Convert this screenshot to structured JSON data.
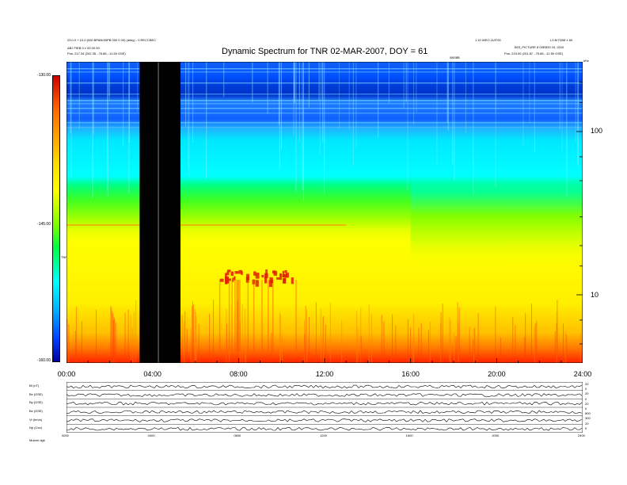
{
  "header": {
    "title": "Dynamic Spectrum for TNR 02-MAR-2007, DOY = 61",
    "left_line1": "23.0.0 + 10.0 (000 BPANOBPB 000 0 00) (deky) - 0 RECCBEC",
    "left_line2": "ABJ FIEB 0 ± 00 00 00",
    "left_line3": "Pos: 217.34 (202.35, -76.85, -11.59 GSE)",
    "right_line1": "1.10 WEO 2UIT00",
    "right_line2": "L3 B/700M ± 60",
    "right_line3": "B03_PICTURE 8 00EB33 10, 2010",
    "right_line4": "Pos: 215.00 (201.87, -75.85, -12.50 GSE)",
    "center_small": "08/08B",
    "right_unit": "kHz"
  },
  "colorbar": {
    "label": "TNR",
    "ticks": [
      "-130.00",
      "-145.00",
      "-160.00"
    ]
  },
  "chart_data": {
    "type": "heatmap",
    "title": "Dynamic Spectrum for TNR 02-MAR-2007, DOY = 61",
    "x": {
      "label": "",
      "range": [
        0,
        24
      ],
      "tick_labels": [
        "00:00",
        "04:00",
        "08:00",
        "12:00",
        "16:00",
        "20:00",
        "24:00"
      ]
    },
    "y": {
      "label": "kHz",
      "scale": "log",
      "tick_labels": [
        "100",
        "10"
      ]
    },
    "colorbar_range": [
      -160.0,
      -130.0
    ],
    "data_gap_hours": [
      3.4,
      5.3
    ],
    "bands": [
      {
        "freq_band": "top",
        "level": -133
      },
      {
        "freq_band": "upper",
        "level": -137
      },
      {
        "freq_band": "middle",
        "level": -142
      },
      {
        "freq_band": "lower-middle",
        "level": -150
      },
      {
        "freq_band": "low",
        "level": -155
      },
      {
        "freq_band": "lowest",
        "level": -159
      }
    ],
    "hotspot": {
      "x_hours": [
        7.0,
        10.8
      ],
      "level": -158
    }
  },
  "mag_panel": {
    "row_labels": [
      "Bt (nT)",
      "Bx (GSE)",
      "By (GSE)",
      "Bz (GSE)",
      "Vr (km/s)",
      "Np (1/cc)"
    ],
    "right_labels": [
      "20",
      "0",
      "20",
      "0",
      "20",
      "0",
      "800",
      "300",
      "20",
      "0"
    ],
    "x_tick_labels": [
      "0000",
      "0400",
      "0800",
      "1200",
      "1600",
      "2000",
      "2400"
    ],
    "footer": "Mutnm  dgk"
  }
}
